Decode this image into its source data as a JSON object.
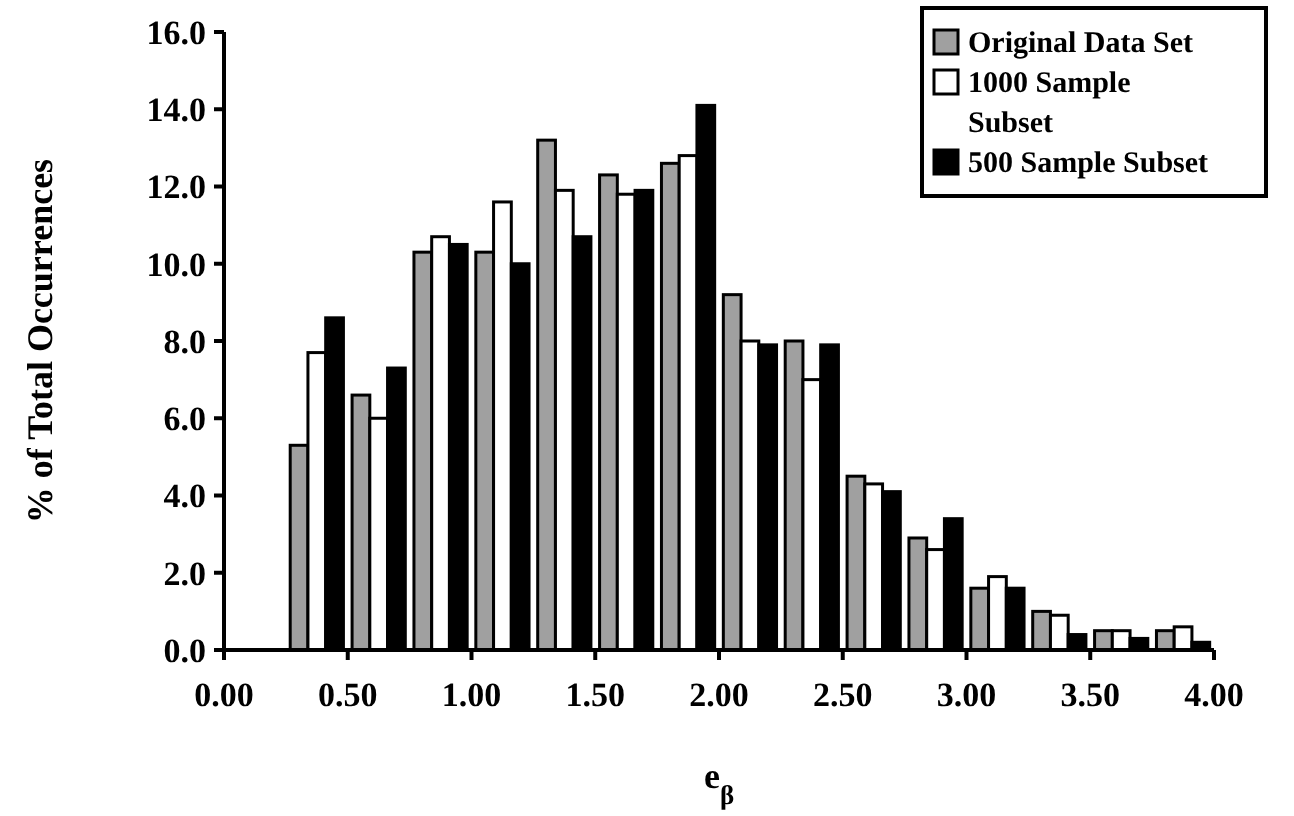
{
  "chart_data": {
    "type": "bar",
    "xlabel": "e$_{β}$",
    "ylabel": "% of Total Occurrences",
    "x": [
      0.375,
      0.625,
      0.875,
      1.125,
      1.375,
      1.625,
      1.875,
      2.125,
      2.375,
      2.625,
      2.875,
      3.125,
      3.375,
      3.625,
      3.875
    ],
    "series": [
      {
        "name": "Original Data Set",
        "color": "#a0a0a0",
        "values": [
          5.3,
          6.6,
          10.3,
          10.3,
          13.2,
          12.3,
          12.6,
          9.2,
          8.0,
          4.5,
          2.9,
          1.6,
          1.0,
          0.5,
          0.5
        ]
      },
      {
        "name": "1000 Sample Subset",
        "color": "#ffffff",
        "values": [
          7.7,
          6.0,
          10.7,
          11.6,
          11.9,
          11.8,
          12.8,
          8.0,
          7.0,
          4.3,
          2.6,
          1.9,
          0.9,
          0.5,
          0.6
        ]
      },
      {
        "name": "500 Sample Subset",
        "color": "#000000",
        "values": [
          8.6,
          7.3,
          10.5,
          10.0,
          10.7,
          11.9,
          14.1,
          7.9,
          7.9,
          4.1,
          3.4,
          1.6,
          0.4,
          0.3,
          0.2
        ]
      }
    ],
    "xlim": [
      0,
      4
    ],
    "xticks": [
      {
        "value": 0,
        "label": "0.00"
      },
      {
        "value": 0.5,
        "label": "0.50"
      },
      {
        "value": 1,
        "label": "1.00"
      },
      {
        "value": 1.5,
        "label": "1.50"
      },
      {
        "value": 2,
        "label": "2.00"
      },
      {
        "value": 2.5,
        "label": "2.50"
      },
      {
        "value": 3,
        "label": "3.00"
      },
      {
        "value": 3.5,
        "label": "3.50"
      },
      {
        "value": 4,
        "label": "4.00"
      }
    ],
    "ylim": [
      0,
      16
    ],
    "yticks": [
      {
        "value": 0,
        "label": "0.0"
      },
      {
        "value": 2,
        "label": "2.0"
      },
      {
        "value": 4,
        "label": "4.0"
      },
      {
        "value": 6,
        "label": "6.0"
      },
      {
        "value": 8,
        "label": "8.0"
      },
      {
        "value": 10,
        "label": "10.0"
      },
      {
        "value": 12,
        "label": "12.0"
      },
      {
        "value": 14,
        "label": "14.0"
      },
      {
        "value": 16,
        "label": "16.0"
      }
    ],
    "grid": false,
    "legend": "top right"
  }
}
